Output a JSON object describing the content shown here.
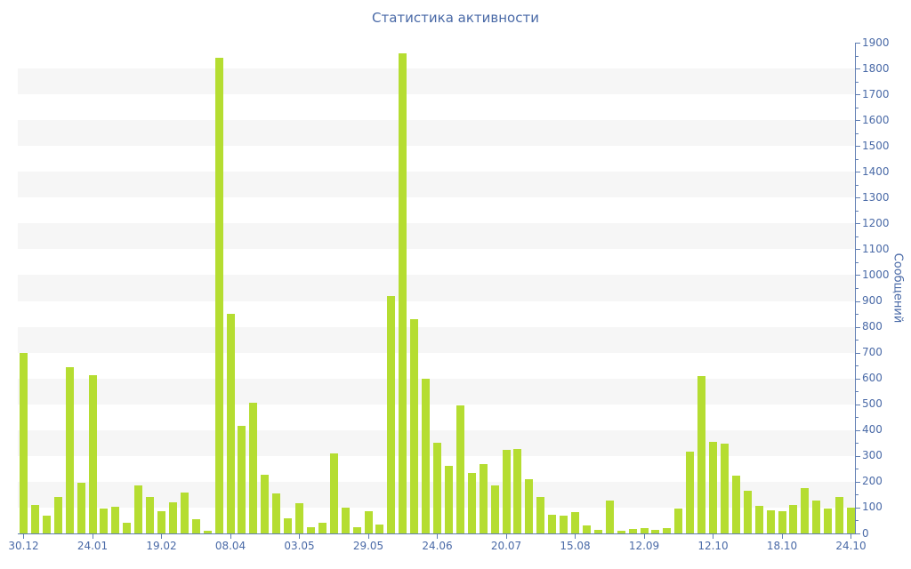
{
  "chart_data": {
    "type": "bar",
    "title": "Статистика активности",
    "ylabel": "Сообщений",
    "xlabel": "",
    "ylim": [
      0,
      1900
    ],
    "y_tick_interval": 100,
    "y_minor_tick_interval": 50,
    "legend": "none",
    "grid": "alternating horizontal bands, one band per 100 units",
    "y_axis_side": "right",
    "bar_count": 73,
    "x_tick_labels": [
      {
        "i": 0,
        "label": "30.12"
      },
      {
        "i": 6,
        "label": "24.01"
      },
      {
        "i": 12,
        "label": "19.02"
      },
      {
        "i": 18,
        "label": "08.04"
      },
      {
        "i": 24,
        "label": "03.05"
      },
      {
        "i": 30,
        "label": "29.05"
      },
      {
        "i": 36,
        "label": "24.06"
      },
      {
        "i": 42,
        "label": "20.07"
      },
      {
        "i": 48,
        "label": "15.08"
      },
      {
        "i": 54,
        "label": "12.09"
      },
      {
        "i": 60,
        "label": "12.10"
      },
      {
        "i": 66,
        "label": "18.10"
      },
      {
        "i": 72,
        "label": "24.10"
      }
    ],
    "values": [
      700,
      110,
      70,
      140,
      645,
      195,
      612,
      95,
      103,
      40,
      185,
      140,
      85,
      120,
      160,
      55,
      10,
      1840,
      850,
      415,
      505,
      227,
      155,
      60,
      117,
      24,
      42,
      310,
      100,
      25,
      85,
      35,
      920,
      1860,
      830,
      600,
      350,
      262,
      495,
      235,
      270,
      185,
      325,
      327,
      210,
      140,
      72,
      70,
      83,
      30,
      15,
      126,
      10,
      17,
      20,
      15,
      22,
      95,
      315,
      610,
      355,
      348,
      224,
      166,
      106,
      88,
      86,
      111,
      175,
      128,
      97,
      140,
      101
    ],
    "colors": {
      "bar": "#b5dd31",
      "axis": "#5f7db2",
      "text": "#4a6aa7",
      "band": "#f6f6f6",
      "background": "#ffffff"
    }
  }
}
